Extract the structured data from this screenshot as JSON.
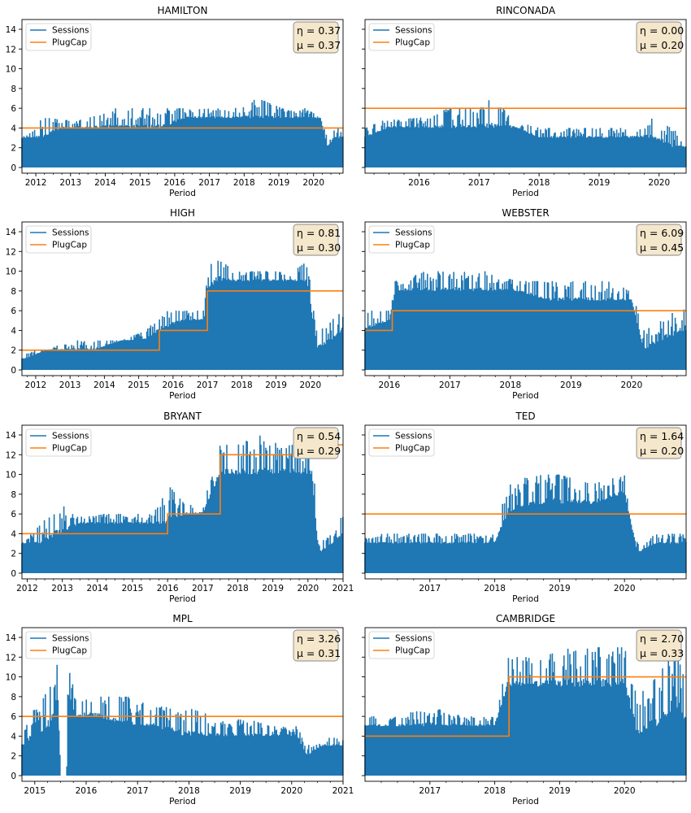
{
  "figure": {
    "legend_location": "upper-left",
    "annotation_location": "upper-right",
    "colors": {
      "sessions": "#1f77b4",
      "plugcap": "#ff7f0e",
      "annotation_bg": "#f5e7cb",
      "annotation_border": "#8a8a8a",
      "axis": "#000000"
    }
  },
  "chart_data": [
    {
      "type": "line",
      "title": "HAMILTON",
      "xlabel": "Period",
      "ylabel": "",
      "ylim": [
        0,
        14
      ],
      "xlim": [
        2011.6,
        2020.85
      ],
      "xticks": [
        2012,
        2013,
        2014,
        2015,
        2016,
        2017,
        2018,
        2019,
        2020
      ],
      "yticks": [
        0,
        2,
        4,
        6,
        8,
        10,
        12,
        14
      ],
      "show_yticklabels": true,
      "legend": [
        "Sessions",
        "PlugCap"
      ],
      "annotation": [
        "η = 0.37",
        "μ = 0.37"
      ],
      "series": [
        {
          "name": "Sessions",
          "role": "sessions",
          "x": [
            2011.6,
            2012.2,
            2012.8,
            2013.5,
            2014.3,
            2015.0,
            2015.7,
            2016.3,
            2017.0,
            2017.7,
            2018.4,
            2019.1,
            2019.8,
            2020.2,
            2020.4,
            2020.6,
            2020.85
          ],
          "peak": [
            3,
            5,
            5,
            5,
            6,
            6,
            6,
            6,
            6,
            6,
            7,
            6,
            6,
            5,
            3,
            4,
            4
          ],
          "base": [
            3,
            3,
            4,
            4,
            4,
            4,
            4,
            5,
            5,
            5,
            5,
            5,
            5,
            5,
            2,
            3,
            3
          ]
        },
        {
          "name": "PlugCap",
          "role": "plugcap",
          "steps": [
            [
              2011.6,
              4
            ],
            [
              2020.85,
              4
            ]
          ]
        }
      ]
    },
    {
      "type": "line",
      "title": "RINCONADA",
      "xlabel": "Period",
      "ylabel": "",
      "ylim": [
        0,
        14
      ],
      "xlim": [
        2015.1,
        2020.45
      ],
      "xticks": [
        2016,
        2017,
        2018,
        2019,
        2020
      ],
      "yticks": [
        0,
        2,
        4,
        6,
        8,
        10,
        12,
        14
      ],
      "show_yticklabels": false,
      "legend": [
        "Sessions",
        "PlugCap"
      ],
      "annotation": [
        "η = 0.00",
        "μ = 0.20"
      ],
      "series": [
        {
          "name": "Sessions",
          "role": "sessions",
          "x": [
            2015.1,
            2015.5,
            2016.0,
            2016.5,
            2017.0,
            2017.2,
            2017.6,
            2018.0,
            2018.5,
            2019.0,
            2019.5,
            2019.9,
            2020.2,
            2020.45
          ],
          "peak": [
            4,
            5,
            5,
            6,
            6,
            7,
            5,
            4,
            4,
            4,
            4,
            5,
            4,
            3
          ],
          "base": [
            3,
            4,
            4,
            4,
            4,
            4,
            4,
            3,
            3,
            3,
            3,
            3,
            2,
            2
          ]
        },
        {
          "name": "PlugCap",
          "role": "plugcap",
          "steps": [
            [
              2015.1,
              6
            ],
            [
              2020.45,
              6
            ]
          ]
        }
      ]
    },
    {
      "type": "line",
      "title": "HIGH",
      "xlabel": "Period",
      "ylabel": "",
      "ylim": [
        0,
        14
      ],
      "xlim": [
        2011.6,
        2020.95
      ],
      "xticks": [
        2012,
        2013,
        2014,
        2015,
        2016,
        2017,
        2018,
        2019,
        2020
      ],
      "yticks": [
        0,
        2,
        4,
        6,
        8,
        10,
        12,
        14
      ],
      "show_yticklabels": true,
      "legend": [
        "Sessions",
        "PlugCap"
      ],
      "annotation": [
        "η = 0.81",
        "μ = 0.30"
      ],
      "series": [
        {
          "name": "Sessions",
          "role": "sessions",
          "x": [
            2011.6,
            2012.3,
            2013.0,
            2013.7,
            2014.5,
            2015.2,
            2015.6,
            2016.3,
            2016.9,
            2017.0,
            2017.3,
            2017.7,
            2018.3,
            2018.9,
            2019.5,
            2019.9,
            2020.2,
            2020.6,
            2020.95
          ],
          "peak": [
            2,
            2,
            3,
            3,
            3,
            4,
            6,
            6,
            6,
            10,
            12,
            10,
            10,
            10,
            10,
            11,
            4,
            5,
            6
          ],
          "base": [
            1,
            2,
            2,
            2,
            3,
            3,
            4,
            5,
            5,
            8,
            9,
            9,
            9,
            9,
            9,
            9,
            2,
            3,
            4
          ]
        },
        {
          "name": "PlugCap",
          "role": "plugcap",
          "steps": [
            [
              2011.6,
              2
            ],
            [
              2015.6,
              4
            ],
            [
              2017.0,
              8
            ],
            [
              2020.95,
              8
            ]
          ]
        }
      ]
    },
    {
      "type": "line",
      "title": "WEBSTER",
      "xlabel": "Period",
      "ylabel": "",
      "ylim": [
        0,
        14
      ],
      "xlim": [
        2015.6,
        2020.9
      ],
      "xticks": [
        2016,
        2017,
        2018,
        2019,
        2020
      ],
      "yticks": [
        0,
        2,
        4,
        6,
        8,
        10,
        12,
        14
      ],
      "show_yticklabels": false,
      "legend": [
        "Sessions",
        "PlugCap"
      ],
      "annotation": [
        "η = 6.09",
        "μ = 0.45"
      ],
      "series": [
        {
          "name": "Sessions",
          "role": "sessions",
          "x": [
            2015.6,
            2016.0,
            2016.1,
            2016.6,
            2017.1,
            2017.6,
            2018.1,
            2018.6,
            2019.1,
            2019.6,
            2020.0,
            2020.2,
            2020.5,
            2020.9
          ],
          "peak": [
            6,
            6,
            9,
            10,
            10,
            10,
            9,
            9,
            9,
            9,
            8,
            4,
            5,
            7
          ],
          "base": [
            4,
            5,
            8,
            8,
            8,
            8,
            8,
            7,
            7,
            7,
            7,
            2,
            3,
            4
          ]
        },
        {
          "name": "PlugCap",
          "role": "plugcap",
          "steps": [
            [
              2015.6,
              4
            ],
            [
              2016.05,
              6
            ],
            [
              2020.9,
              6
            ]
          ]
        }
      ]
    },
    {
      "type": "line",
      "title": "BRYANT",
      "xlabel": "Period",
      "ylabel": "",
      "ylim": [
        0,
        14
      ],
      "xlim": [
        2011.85,
        2021.0
      ],
      "xticks": [
        2012,
        2013,
        2014,
        2015,
        2016,
        2017,
        2018,
        2019,
        2020,
        2021
      ],
      "yticks": [
        0,
        2,
        4,
        6,
        8,
        10,
        12,
        14
      ],
      "show_yticklabels": true,
      "legend": [
        "Sessions",
        "PlugCap"
      ],
      "annotation": [
        "η = 0.54",
        "μ = 0.29"
      ],
      "series": [
        {
          "name": "Sessions",
          "role": "sessions",
          "x": [
            2011.85,
            2012.4,
            2012.9,
            2013.5,
            2014.2,
            2014.9,
            2015.6,
            2016.0,
            2016.5,
            2017.0,
            2017.5,
            2018.0,
            2018.6,
            2019.2,
            2019.8,
            2020.1,
            2020.3,
            2020.7,
            2021.0
          ],
          "peak": [
            3,
            5,
            7,
            6,
            6,
            6,
            6,
            9,
            7,
            7,
            13,
            13,
            14,
            13,
            13,
            14,
            3,
            4,
            6
          ],
          "base": [
            3,
            3,
            4,
            5,
            5,
            5,
            5,
            5,
            6,
            6,
            10,
            10,
            10,
            10,
            10,
            10,
            2,
            3,
            4
          ]
        },
        {
          "name": "PlugCap",
          "role": "plugcap",
          "steps": [
            [
              2011.85,
              4
            ],
            [
              2016.0,
              6
            ],
            [
              2017.5,
              12
            ],
            [
              2020.6,
              13
            ],
            [
              2021.0,
              13
            ]
          ]
        }
      ]
    },
    {
      "type": "line",
      "title": "TED",
      "xlabel": "Period",
      "ylabel": "",
      "ylim": [
        0,
        14
      ],
      "xlim": [
        2016.0,
        2020.95
      ],
      "xticks": [
        2017,
        2018,
        2019,
        2020
      ],
      "yticks": [
        0,
        2,
        4,
        6,
        8,
        10,
        12,
        14
      ],
      "show_yticklabels": false,
      "legend": [
        "Sessions",
        "PlugCap"
      ],
      "annotation": [
        "η = 1.64",
        "μ = 0.20"
      ],
      "series": [
        {
          "name": "Sessions",
          "role": "sessions",
          "x": [
            2016.0,
            2016.5,
            2017.0,
            2017.5,
            2018.0,
            2018.2,
            2018.6,
            2019.0,
            2019.5,
            2020.0,
            2020.2,
            2020.5,
            2020.95
          ],
          "peak": [
            4,
            4,
            4,
            4,
            4,
            9,
            10,
            10,
            9,
            10,
            3,
            4,
            4
          ],
          "base": [
            3,
            3,
            3,
            3,
            3,
            6,
            7,
            7,
            7,
            8,
            2,
            3,
            3
          ]
        },
        {
          "name": "PlugCap",
          "role": "plugcap",
          "steps": [
            [
              2016.0,
              6
            ],
            [
              2020.95,
              6
            ]
          ]
        }
      ]
    },
    {
      "type": "line",
      "title": "MPL",
      "xlabel": "Period",
      "ylabel": "",
      "ylim": [
        0,
        14
      ],
      "xlim": [
        2014.75,
        2021.0
      ],
      "xticks": [
        2015,
        2016,
        2017,
        2018,
        2019,
        2020,
        2021
      ],
      "yticks": [
        0,
        2,
        4,
        6,
        8,
        10,
        12,
        14
      ],
      "show_yticklabels": true,
      "legend": [
        "Sessions",
        "PlugCap"
      ],
      "annotation": [
        "η = 3.26",
        "μ = 0.31"
      ],
      "series": [
        {
          "name": "Sessions",
          "role": "sessions",
          "x": [
            2014.75,
            2015.0,
            2015.3,
            2015.45,
            2015.5,
            2015.62,
            2015.65,
            2015.8,
            2016.2,
            2016.8,
            2017.3,
            2017.9,
            2018.5,
            2019.0,
            2019.6,
            2020.1,
            2020.3,
            2020.6,
            2021.0
          ],
          "peak": [
            4,
            7,
            9,
            12,
            0,
            0,
            11,
            8,
            8,
            8,
            7,
            7,
            6,
            6,
            5,
            5,
            3,
            4,
            4
          ],
          "base": [
            3,
            4,
            5,
            8,
            0,
            0,
            8,
            6,
            6,
            5,
            5,
            4,
            4,
            4,
            4,
            4,
            2,
            3,
            3
          ]
        },
        {
          "name": "PlugCap",
          "role": "plugcap",
          "steps": [
            [
              2014.75,
              6
            ],
            [
              2021.0,
              6
            ]
          ]
        }
      ]
    },
    {
      "type": "line",
      "title": "CAMBRIDGE",
      "xlabel": "Period",
      "ylabel": "",
      "ylim": [
        0,
        14
      ],
      "xlim": [
        2016.0,
        2020.95
      ],
      "xticks": [
        2017,
        2018,
        2019,
        2020
      ],
      "yticks": [
        0,
        2,
        4,
        6,
        8,
        10,
        12,
        14
      ],
      "show_yticklabels": false,
      "legend": [
        "Sessions",
        "PlugCap"
      ],
      "annotation": [
        "η = 2.70",
        "μ = 0.33"
      ],
      "series": [
        {
          "name": "Sessions",
          "role": "sessions",
          "x": [
            2016.0,
            2016.5,
            2017.0,
            2017.5,
            2018.0,
            2018.2,
            2018.7,
            2019.2,
            2019.7,
            2020.0,
            2020.2,
            2020.5,
            2020.8,
            2020.95
          ],
          "peak": [
            6,
            6,
            7,
            6,
            6,
            12,
            12,
            13,
            13,
            13,
            8,
            10,
            13,
            9
          ],
          "base": [
            5,
            5,
            5,
            5,
            5,
            9,
            9,
            9,
            9,
            9,
            4,
            5,
            7,
            5
          ]
        },
        {
          "name": "PlugCap",
          "role": "plugcap",
          "steps": [
            [
              2016.0,
              4
            ],
            [
              2018.22,
              10
            ],
            [
              2020.95,
              10
            ]
          ]
        }
      ]
    }
  ]
}
